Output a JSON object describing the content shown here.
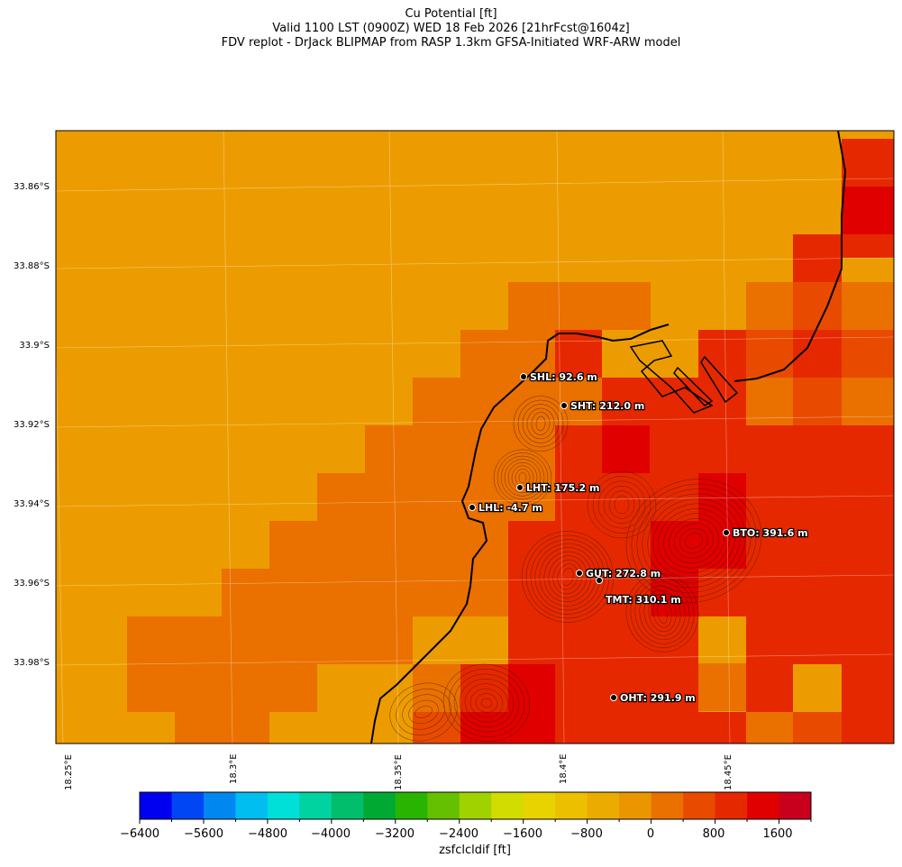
{
  "title": {
    "line1": "Cu Potential [ft]",
    "line2": "Valid 1100 LST (0900Z) WED 18 Feb 2026 [21hrFcst@1604z]",
    "line3": "FDV replot - DrJack BLIPMAP from RASP 1.3km GFSA-Initiated WRF-ARW model"
  },
  "axes": {
    "lat_ticks": [
      "33.86°S",
      "33.88°S",
      "33.9°S",
      "33.92°S",
      "33.94°S",
      "33.96°S",
      "33.98°S"
    ],
    "lon_ticks": [
      "18.25°E",
      "18.3°E",
      "18.35°E",
      "18.4°E",
      "18.45°E"
    ]
  },
  "stations": [
    {
      "label": "SHL: 92.6 m"
    },
    {
      "label": "SHT: 212.0 m"
    },
    {
      "label": "LHT: 175.2 m"
    },
    {
      "label": "LHL: -4.7 m"
    },
    {
      "label": "BTO: 391.6 m"
    },
    {
      "label": "GUT: 272.8 m"
    },
    {
      "label": "TMT: 310.1 m"
    },
    {
      "label": "OHT: 291.9 m"
    }
  ],
  "colorbar": {
    "label": "zsfclcldif [ft]",
    "tick_labels": [
      "−6400",
      "−5600",
      "−4800",
      "−4000",
      "−3200",
      "−2400",
      "−1600",
      "−800",
      "0",
      "800",
      "1600"
    ],
    "colors": [
      "#0000f0",
      "#0046f5",
      "#0087f0",
      "#00bef0",
      "#00e0d8",
      "#00d2a0",
      "#00be6c",
      "#00aa32",
      "#28b400",
      "#64c000",
      "#a0d200",
      "#d2dc00",
      "#e8d200",
      "#ecbf00",
      "#ecab00",
      "#eb9600",
      "#ea7000",
      "#e84b00",
      "#e62800",
      "#e00000",
      "#c8001e"
    ]
  }
}
